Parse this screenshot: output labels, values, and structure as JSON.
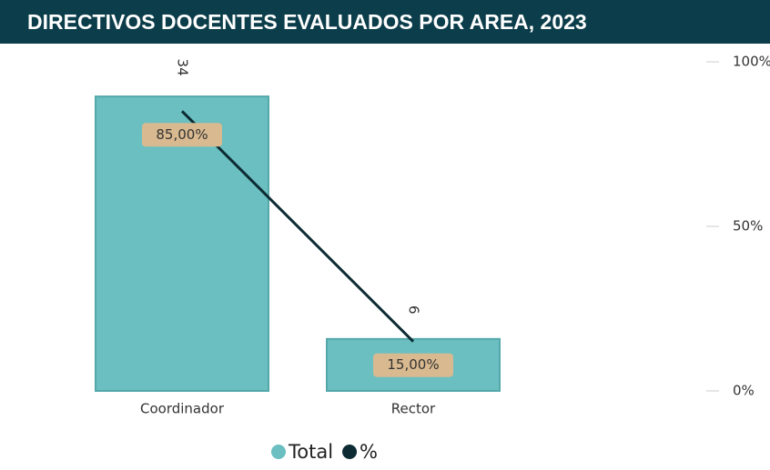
{
  "chart_data": {
    "type": "bar-line",
    "title": "DIRECTIVOS DOCENTES EVALUADOS POR AREA, 2023",
    "categories": [
      "Coordinador",
      "Rector"
    ],
    "series": [
      {
        "name": "Total",
        "type": "bar",
        "color": "#6bbfc1",
        "values": [
          34,
          6
        ]
      },
      {
        "name": "%",
        "type": "line",
        "axis": "y2",
        "color": "#0d2b33",
        "values": [
          85,
          15
        ],
        "value_labels": [
          "85,00%",
          "15,00%"
        ]
      }
    ],
    "ylim": [
      0,
      38
    ],
    "y2lim": [
      0,
      100
    ],
    "y2ticks": [
      {
        "value": 0,
        "label": "0%"
      },
      {
        "value": 50,
        "label": "50%"
      },
      {
        "value": 100,
        "label": "100%"
      }
    ]
  }
}
